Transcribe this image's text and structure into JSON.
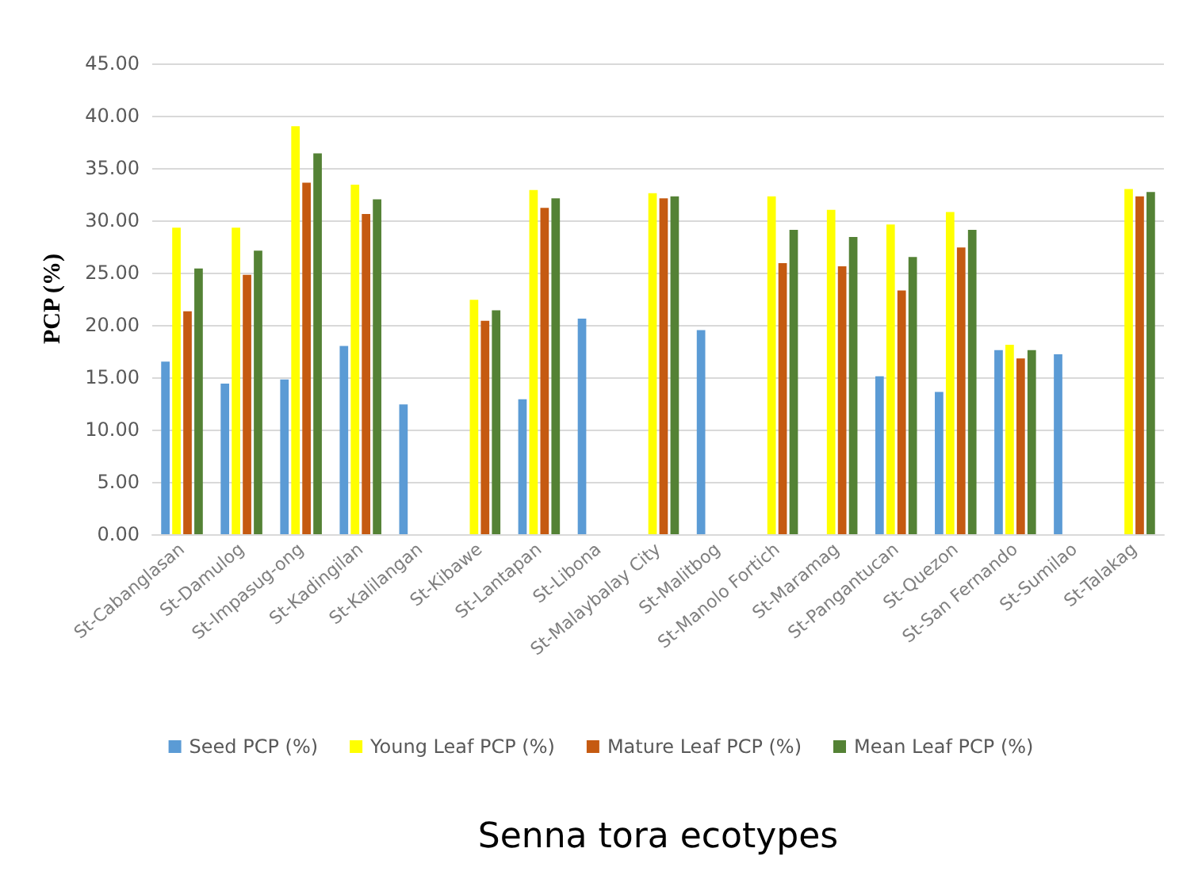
{
  "chart_data": {
    "type": "bar",
    "xlabel": "Senna tora ecotypes",
    "ylabel": "PCP (%)",
    "categories": [
      "St-Cabanglasan",
      "St-Damulog",
      "St-Impasug-ong",
      "St-Kadingilan",
      "St-Kalilangan",
      "St-Kibawe",
      "St-Lantapan",
      "St-Libona",
      "St-Malaybalay City",
      "St-Malitbog",
      "St-Manolo Fortich",
      "St-Maramag",
      "St-Pangantucan",
      "St-Quezon",
      "St-San Fernando",
      "St-Sumilao",
      "St-Talakag"
    ],
    "series": [
      {
        "name": "Seed PCP (%)",
        "color": "#5b9bd5",
        "values": [
          16.5,
          14.4,
          14.8,
          18.0,
          12.4,
          null,
          12.9,
          20.6,
          null,
          19.5,
          null,
          null,
          15.1,
          13.6,
          17.6,
          17.2,
          null
        ]
      },
      {
        "name": "Young Leaf PCP (%)",
        "color": "#ffff00",
        "values": [
          29.3,
          29.3,
          39.0,
          33.4,
          null,
          22.4,
          32.9,
          null,
          32.6,
          null,
          32.3,
          31.0,
          29.6,
          30.8,
          18.1,
          null,
          33.0
        ]
      },
      {
        "name": "Mature Leaf PCP (%)",
        "color": "#c55a11",
        "values": [
          21.3,
          24.8,
          33.6,
          30.6,
          null,
          20.4,
          31.2,
          null,
          32.1,
          null,
          25.9,
          25.6,
          23.3,
          27.4,
          16.8,
          null,
          32.3
        ]
      },
      {
        "name": "Mean Leaf PCP (%)",
        "color": "#548235",
        "values": [
          25.4,
          27.1,
          36.4,
          32.0,
          null,
          21.4,
          32.1,
          null,
          32.3,
          null,
          29.1,
          28.4,
          26.5,
          29.1,
          17.6,
          null,
          32.7
        ]
      }
    ],
    "ylim": [
      0,
      45
    ],
    "yticks": [
      {
        "value": 0,
        "label": "0.00"
      },
      {
        "value": 5,
        "label": "5.00"
      },
      {
        "value": 10,
        "label": "10.00"
      },
      {
        "value": 15,
        "label": "15.00"
      },
      {
        "value": 20,
        "label": "20.00"
      },
      {
        "value": 25,
        "label": "25.00"
      },
      {
        "value": 30,
        "label": "30.00"
      },
      {
        "value": 35,
        "label": "35.00"
      },
      {
        "value": 40,
        "label": "40.00"
      },
      {
        "value": 45,
        "label": "45.00"
      }
    ],
    "grid": "y",
    "legend": "bottom"
  }
}
